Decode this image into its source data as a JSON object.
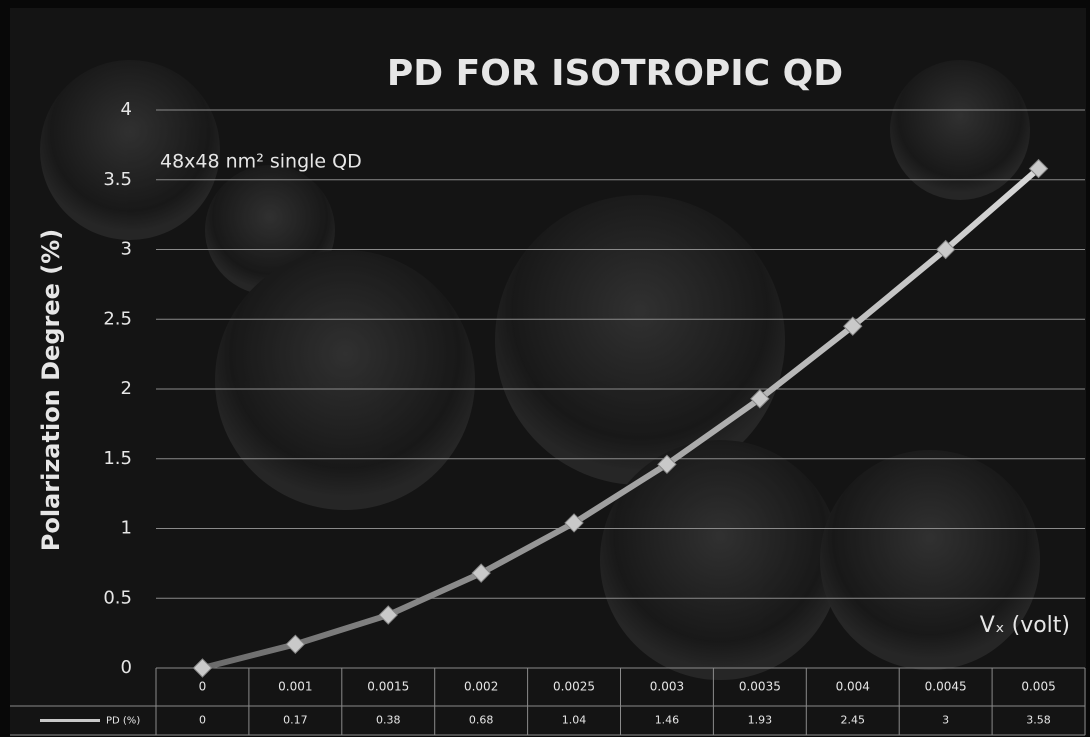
{
  "chart_data": {
    "type": "line",
    "title": "PD FOR ISOTROPIC  QD",
    "annotation": "48x48 nm² single QD",
    "x_label": "Vₓ (volt)",
    "y_label": "Polarization Degree (%)",
    "categories": [
      "0",
      "0.001",
      "0.0015",
      "0.002",
      "0.0025",
      "0.003",
      "0.0035",
      "0.004",
      "0.0045",
      "0.005"
    ],
    "series": [
      {
        "name": "PD (%)",
        "color": "#c9c9c9",
        "values": [
          0,
          0.17,
          0.38,
          0.68,
          1.04,
          1.46,
          1.93,
          2.45,
          3,
          3.58
        ]
      }
    ],
    "ylim": [
      0,
      4
    ],
    "yticks": [
      0,
      0.5,
      1,
      1.5,
      2,
      2.5,
      3,
      3.5,
      4
    ],
    "grid": true
  }
}
